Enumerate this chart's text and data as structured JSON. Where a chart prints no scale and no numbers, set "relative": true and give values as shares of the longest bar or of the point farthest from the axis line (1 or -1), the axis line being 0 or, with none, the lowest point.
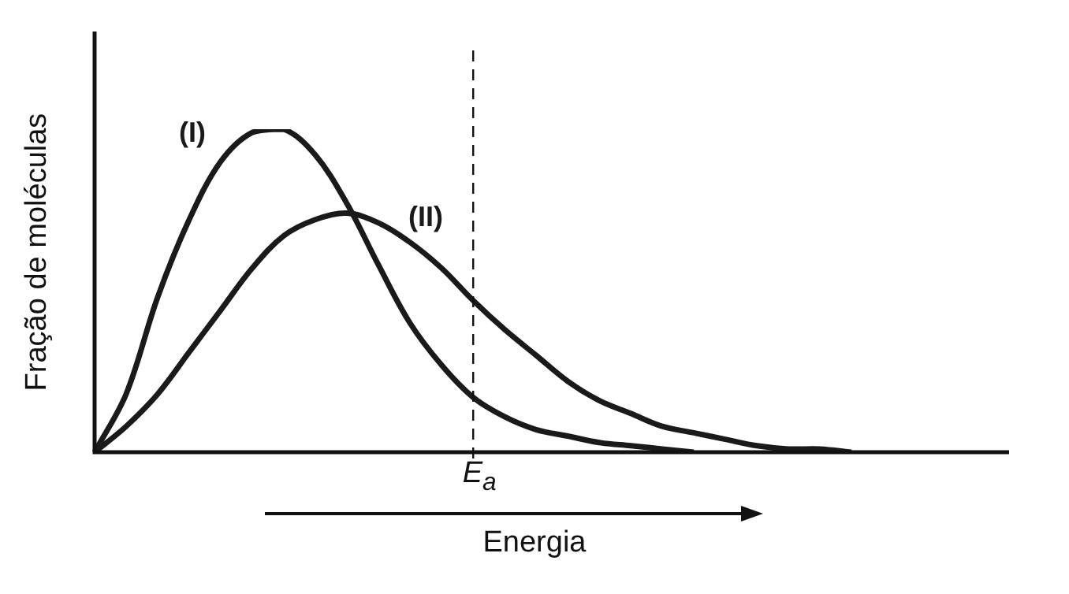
{
  "chart_data": {
    "type": "line",
    "relative": true,
    "xlabel": "Energia",
    "ylabel": "Fração de moléculas",
    "categories": [
      null,
      null,
      null,
      null,
      null,
      null,
      null,
      null,
      null,
      null,
      null,
      null,
      null,
      null,
      null,
      null,
      null,
      null,
      null,
      null,
      null,
      null,
      null,
      null,
      null,
      null,
      null,
      null,
      null,
      null
    ],
    "series": [
      {
        "name": "(I)",
        "color": "#1a1a1a",
        "values": [
          0,
          0.18,
          0.48,
          0.72,
          0.9,
          0.99,
          1,
          0.92,
          0.77,
          0.58,
          0.4,
          0.27,
          0.17,
          0.11,
          0.07,
          0.05,
          0.03,
          0.02,
          0.01,
          0,
          null,
          null,
          null,
          null,
          null,
          null,
          null,
          null,
          null,
          null
        ]
      },
      {
        "name": "(II)",
        "color": "#1a1a1a",
        "values": [
          0,
          0.08,
          0.18,
          0.31,
          0.44,
          0.57,
          0.67,
          0.72,
          0.74,
          0.71,
          0.65,
          0.57,
          0.47,
          0.38,
          0.3,
          0.22,
          0.16,
          0.12,
          0.08,
          0.06,
          0.04,
          0.02,
          0.01,
          0.01,
          0,
          null,
          null,
          null,
          null,
          null
        ]
      }
    ],
    "annotations": [
      "E$_{a}$"
    ],
    "marker": "none",
    "line_style": "solid",
    "grid": false,
    "legend": false
  }
}
